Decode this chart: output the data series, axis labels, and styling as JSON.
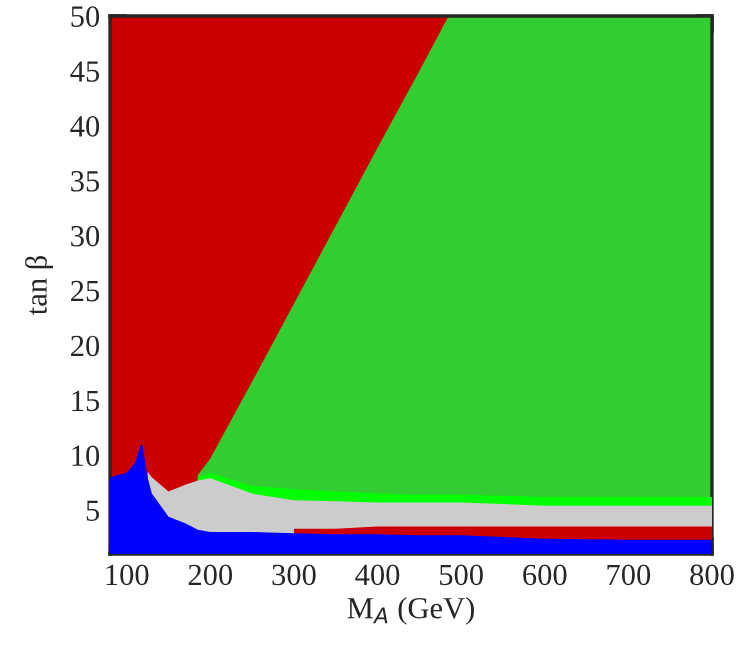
{
  "chart_data": {
    "type": "area",
    "xlabel": "M$_{A}$ (GeV)",
    "ylabel": "tan β",
    "x": [
      80,
      100,
      110,
      118,
      125,
      130,
      150,
      170,
      185,
      200,
      250,
      300,
      350,
      400,
      450,
      485,
      500,
      600,
      700,
      800
    ],
    "series": [
      {
        "color": "#0000ff",
        "values": [
          8,
          8.4,
          9.3,
          11.2,
          8.0,
          6.5,
          4.4,
          3.8,
          3.2,
          3.0,
          3.0,
          2.9,
          2.8,
          2.8,
          2.7,
          2.7,
          2.7,
          2.4,
          2.3,
          2.3
        ]
      },
      {
        "color": "#cc0000",
        "values": [
          null,
          null,
          null,
          null,
          null,
          null,
          null,
          null,
          null,
          null,
          null,
          3.3,
          3.3,
          3.5,
          3.5,
          3.5,
          3.5,
          3.5,
          3.5,
          3.5
        ]
      },
      {
        "color": "#cccccc",
        "values": [
          null,
          null,
          null,
          null,
          8.5,
          8.0,
          6.7,
          7.3,
          7.7,
          7.9,
          6.5,
          5.9,
          5.8,
          5.7,
          5.7,
          5.7,
          5.7,
          5.4,
          5.4,
          5.4
        ]
      },
      {
        "color": "#00ff00",
        "values": [
          null,
          null,
          null,
          null,
          null,
          null,
          null,
          null,
          8.0,
          8.4,
          7.2,
          6.9,
          6.7,
          6.5,
          6.4,
          6.4,
          6.4,
          6.2,
          6.2,
          6.2
        ]
      },
      {
        "color": "#33cc33",
        "values": [
          null,
          null,
          null,
          null,
          null,
          null,
          null,
          null,
          8.2,
          9.7,
          16.7,
          23.8,
          30.9,
          38.0,
          45.0,
          50,
          50,
          50,
          50,
          50
        ]
      },
      {
        "color": "#cc0000",
        "values": [
          50,
          50,
          50,
          50,
          50,
          50,
          50,
          50,
          50,
          50,
          50,
          50,
          50,
          50,
          50,
          50,
          50,
          50,
          50,
          50
        ]
      }
    ],
    "xlim": [
      80,
      800
    ],
    "xticks": [
      100,
      200,
      300,
      400,
      500,
      600,
      700,
      800
    ],
    "ylim": [
      1,
      50
    ],
    "yticks": [
      5,
      10,
      15,
      20,
      25,
      30,
      35,
      40,
      45,
      50
    ]
  }
}
